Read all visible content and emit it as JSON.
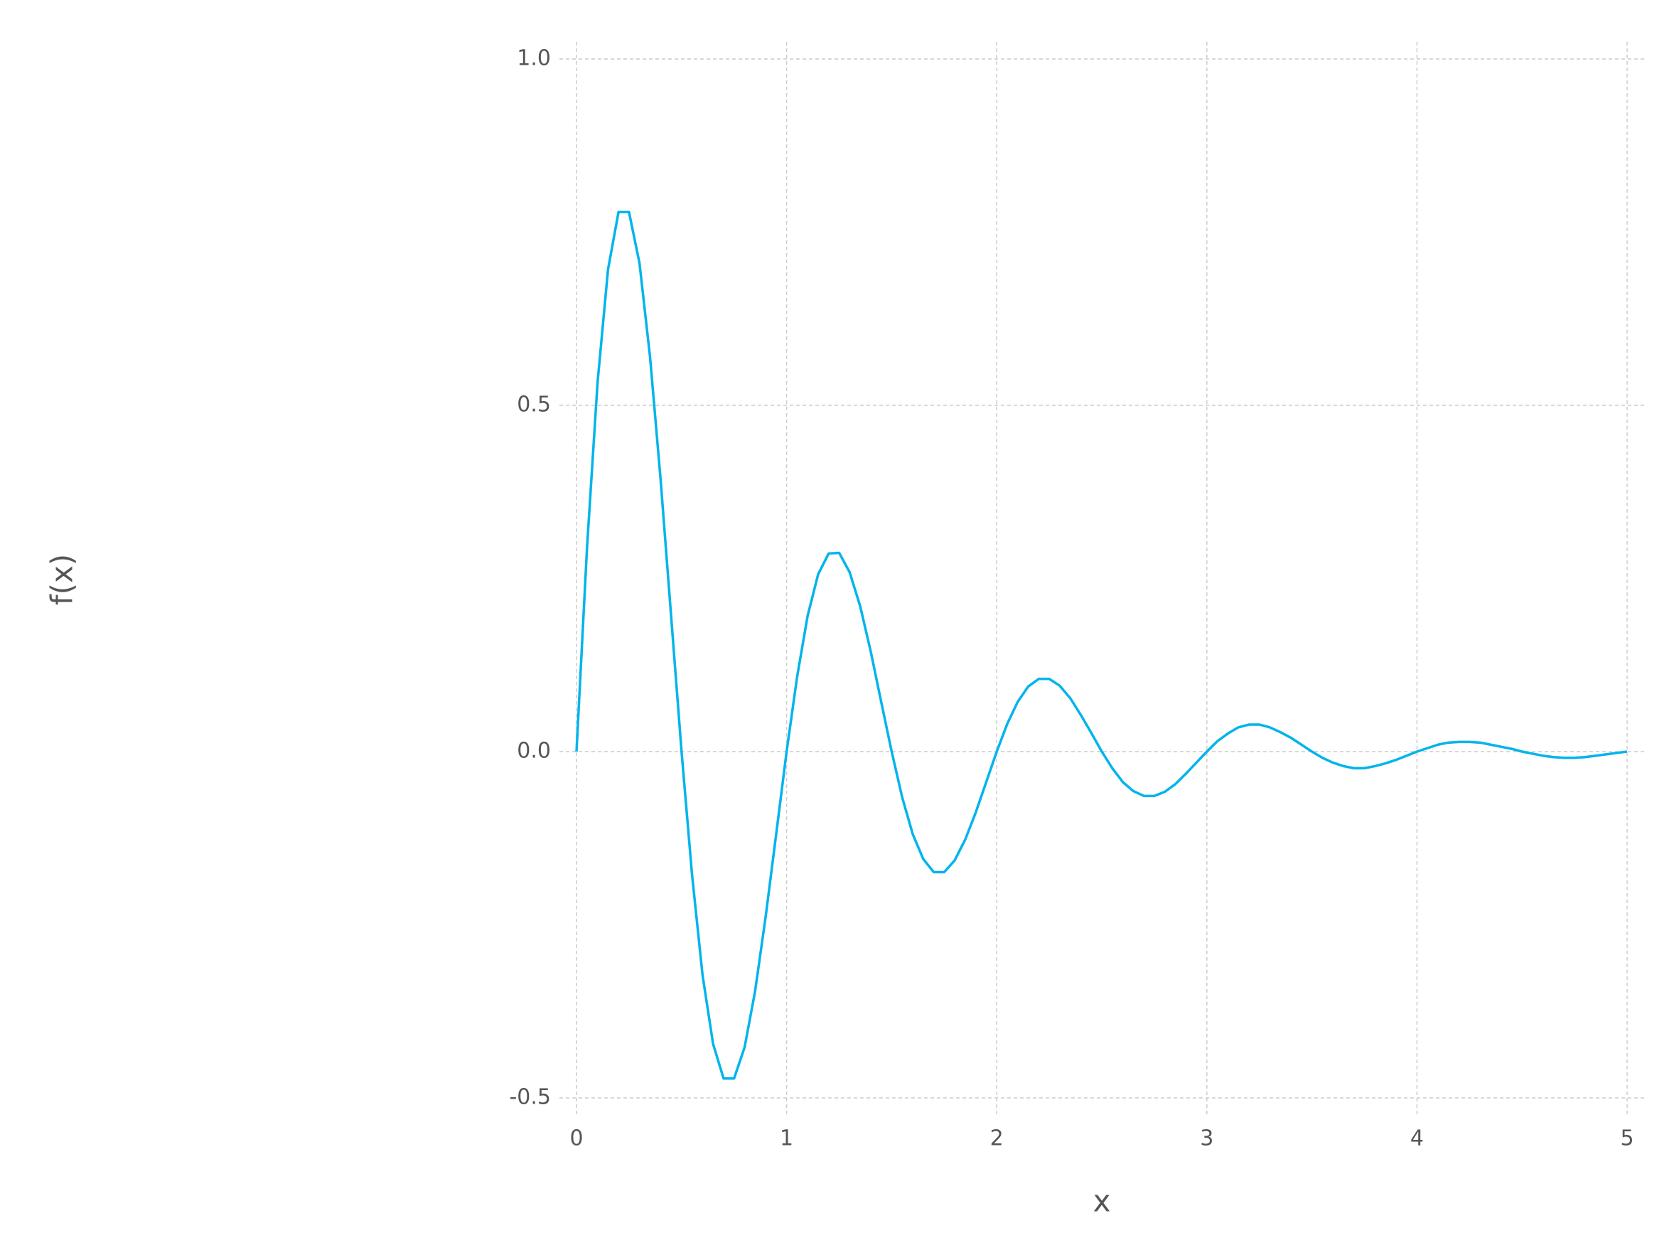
{
  "chart_data": {
    "type": "line",
    "x_label": "x",
    "y_label": "f(x)",
    "x": [
      0,
      0.05,
      0.1,
      0.15,
      0.2,
      0.25,
      0.3,
      0.35,
      0.4,
      0.45,
      0.5,
      0.55,
      0.6,
      0.65,
      0.7,
      0.75,
      0.8,
      0.85,
      0.9,
      0.95,
      1,
      1.05,
      1.1,
      1.15,
      1.2,
      1.25,
      1.3,
      1.35,
      1.4,
      1.45,
      1.5,
      1.55,
      1.6,
      1.65,
      1.7,
      1.75,
      1.8,
      1.85,
      1.9,
      1.95,
      2,
      2.05,
      2.1,
      2.15,
      2.2,
      2.25,
      2.3,
      2.35,
      2.4,
      2.45,
      2.5,
      2.55,
      2.6,
      2.65,
      2.7,
      2.75,
      2.8,
      2.85,
      2.9,
      2.95,
      3,
      3.05,
      3.1,
      3.15,
      3.2,
      3.25,
      3.3,
      3.35,
      3.4,
      3.45,
      3.5,
      3.55,
      3.6,
      3.65,
      3.7,
      3.75,
      3.8,
      3.85,
      3.9,
      3.95,
      4,
      4.05,
      4.1,
      4.15,
      4.2,
      4.25,
      4.3,
      4.35,
      4.4,
      4.45,
      4.5,
      4.55,
      4.6,
      4.65,
      4.7,
      4.75,
      4.8,
      4.85,
      4.9,
      4.95,
      5
    ],
    "series": [
      {
        "color": "#00b4ec",
        "values": [
          0,
          0.294,
          0.532,
          0.696,
          0.779,
          0.779,
          0.705,
          0.57,
          0.394,
          0.197,
          0,
          -0.178,
          -0.323,
          -0.422,
          -0.472,
          -0.472,
          -0.427,
          -0.346,
          -0.239,
          -0.12,
          0,
          0.108,
          0.196,
          0.256,
          0.286,
          0.287,
          0.259,
          0.21,
          0.145,
          0.072,
          0,
          -0.066,
          -0.119,
          -0.155,
          -0.174,
          -0.174,
          -0.157,
          -0.127,
          -0.088,
          -0.044,
          0,
          0.04,
          0.072,
          0.094,
          0.105,
          0.105,
          0.095,
          0.077,
          0.053,
          0.027,
          0,
          -0.024,
          -0.044,
          -0.057,
          -0.064,
          -0.064,
          -0.058,
          -0.047,
          -0.032,
          -0.016,
          0,
          0.015,
          0.026,
          0.035,
          0.039,
          0.039,
          0.035,
          0.028,
          0.02,
          0.01,
          0,
          -0.009,
          -0.016,
          -0.021,
          -0.024,
          -0.024,
          -0.021,
          -0.017,
          -0.012,
          -0.006,
          0,
          0.005,
          0.01,
          0.013,
          0.014,
          0.014,
          0.013,
          0.01,
          0.007,
          0.004,
          0,
          -0.003,
          -0.006,
          -0.008,
          -0.009,
          -0.009,
          -0.008,
          -0.006,
          -0.004,
          -0.002,
          0
        ]
      }
    ],
    "xlim": [
      0,
      5
    ],
    "xticks": [
      0,
      1,
      2,
      3,
      4,
      5
    ],
    "ylim": [
      -0.5,
      1
    ],
    "yticks": [
      {
        "value": 1,
        "label": "1.0"
      },
      {
        "value": 0.5,
        "label": "0.5"
      },
      {
        "value": 0,
        "label": "0.0"
      },
      -0.5
    ],
    "grid": true
  }
}
